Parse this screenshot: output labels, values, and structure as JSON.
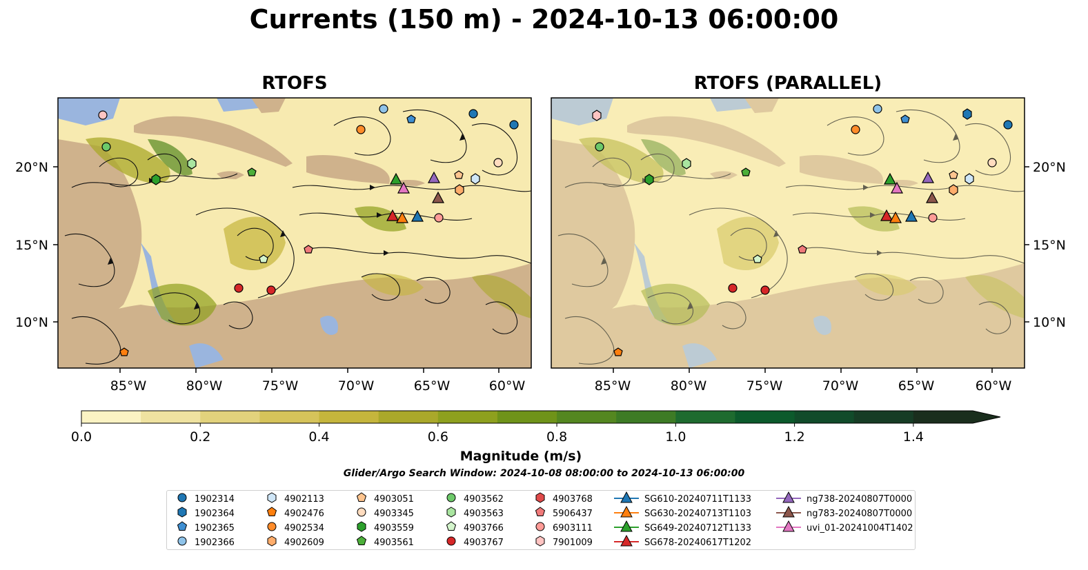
{
  "title": "Currents (150 m) - 2024-10-13 06:00:00",
  "maps": [
    {
      "title": "RTOFS"
    },
    {
      "title": "RTOFS (PARALLEL)"
    }
  ],
  "x_ticks": [
    "85°W",
    "80°W",
    "75°W",
    "70°W",
    "65°W",
    "60°W"
  ],
  "y_ticks": [
    "20°N",
    "15°N",
    "10°N"
  ],
  "colorbar": {
    "label": "Magnitude (m/s)",
    "ticks": [
      "0.0",
      "0.2",
      "0.4",
      "0.6",
      "0.8",
      "1.0",
      "1.2",
      "1.4"
    ],
    "range": [
      0.0,
      1.5
    ],
    "colors": [
      "#fbf3c3",
      "#efe2a0",
      "#e2d27c",
      "#d6c35a",
      "#c5b53c",
      "#aaa82a",
      "#8ea01e",
      "#6f9319",
      "#548720",
      "#3d7b25",
      "#1e6b2f",
      "#0c5a2c",
      "#114b2a",
      "#163c25",
      "#1a2e1d"
    ]
  },
  "search_window": "Glider/Argo Search Window: 2024-10-08 08:00:00 to 2024-10-13 06:00:00",
  "colors": {
    "land": "#cfb28c",
    "water": "#9ab5de",
    "ocean_low": "#f7eab0"
  },
  "legend": [
    {
      "label": "1902314",
      "marker": "circle",
      "color": "#1f77b4"
    },
    {
      "label": "1902364",
      "marker": "hexagon",
      "color": "#1f77b4"
    },
    {
      "label": "1902365",
      "marker": "pentagon",
      "color": "#3f8fd2"
    },
    {
      "label": "1902366",
      "marker": "circle",
      "color": "#8fc3e9"
    },
    {
      "label": "4902113",
      "marker": "hexagon",
      "color": "#cfe6f7"
    },
    {
      "label": "4902476",
      "marker": "pentagon",
      "color": "#ff7f0e"
    },
    {
      "label": "4902534",
      "marker": "circle",
      "color": "#ff8c2a"
    },
    {
      "label": "4902609",
      "marker": "hexagon",
      "color": "#ffad6b"
    },
    {
      "label": "4903051",
      "marker": "pentagon",
      "color": "#ffc58f"
    },
    {
      "label": "4903345",
      "marker": "circle",
      "color": "#ffdcbf"
    },
    {
      "label": "4903559",
      "marker": "hexagon",
      "color": "#2ca02c"
    },
    {
      "label": "4903561",
      "marker": "pentagon",
      "color": "#4caf3a"
    },
    {
      "label": "4903562",
      "marker": "circle",
      "color": "#6dc96a"
    },
    {
      "label": "4903563",
      "marker": "hexagon",
      "color": "#a9e5a0"
    },
    {
      "label": "4903766",
      "marker": "pentagon",
      "color": "#d4f5cc"
    },
    {
      "label": "4903767",
      "marker": "circle",
      "color": "#d62728"
    },
    {
      "label": "4903768",
      "marker": "hexagon",
      "color": "#e04a4a"
    },
    {
      "label": "5906437",
      "marker": "pentagon",
      "color": "#f07a7a"
    },
    {
      "label": "6903111",
      "marker": "circle",
      "color": "#ff9b97"
    },
    {
      "label": "7901009",
      "marker": "hexagon",
      "color": "#ffc4c2"
    },
    {
      "label": "SG610-20240711T1133",
      "marker": "triangle",
      "color": "#1f77b4"
    },
    {
      "label": "SG630-20240713T1103",
      "marker": "triangle",
      "color": "#ff7f0e"
    },
    {
      "label": "SG649-20240712T1133",
      "marker": "triangle",
      "color": "#2ca02c"
    },
    {
      "label": "SG678-20240617T1202",
      "marker": "triangle",
      "color": "#d62728"
    },
    {
      "label": "ng738-20240807T0000",
      "marker": "triangle",
      "color": "#9467bd"
    },
    {
      "label": "ng783-20240807T0000",
      "marker": "triangle",
      "color": "#8c564b"
    },
    {
      "label": "uvi_01-20241004T1402",
      "marker": "triangle",
      "color": "#e377c2"
    }
  ]
}
